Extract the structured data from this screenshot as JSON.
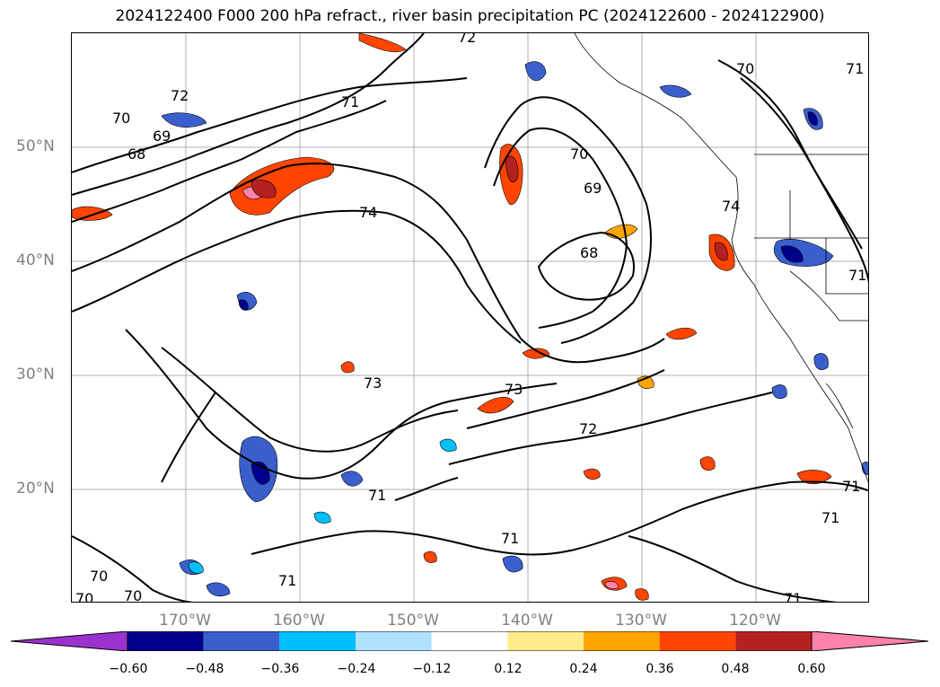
{
  "title": "2024122400 F000 200 hPa refract., river basin precipitation PC (2024122600 - 2024122900)",
  "lat_labels": [
    "50°N",
    "40°N",
    "30°N",
    "20°N"
  ],
  "lon_labels": [
    "170°W",
    "160°W",
    "150°W",
    "140°W",
    "130°W",
    "120°W"
  ],
  "contour_labels": [
    "72",
    "72",
    "71",
    "70",
    "69",
    "68",
    "74",
    "70",
    "69",
    "68",
    "74",
    "73",
    "73",
    "72",
    "71",
    "71",
    "70",
    "70",
    "70",
    "71",
    "71",
    "71",
    "71",
    "71",
    "70",
    "71"
  ],
  "colorbar": {
    "ticks": [
      "−0.60",
      "−0.48",
      "−0.36",
      "−0.24",
      "−0.12",
      "0.12",
      "0.24",
      "0.36",
      "0.48",
      "0.60"
    ],
    "colors": [
      "#9933cc",
      "#00008b",
      "#3a5fcd",
      "#00bfff",
      "#b0e2ff",
      "#ffffff",
      "#ffec8b",
      "#ffa500",
      "#ff4500",
      "#b22222",
      "#ff82ab"
    ]
  }
}
